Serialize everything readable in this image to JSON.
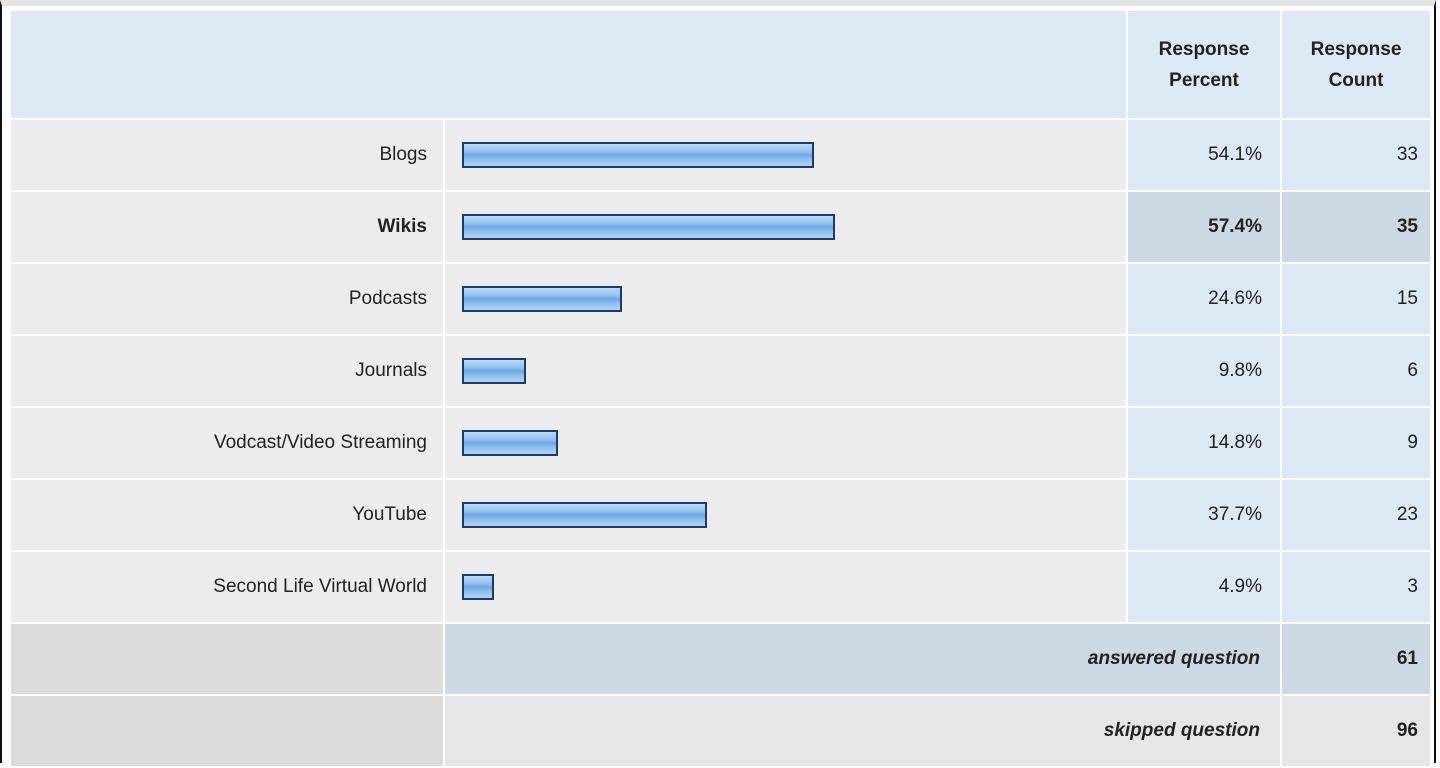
{
  "header": {
    "percent_label_1": "Response",
    "percent_label_2": "Percent",
    "count_label_1": "Response",
    "count_label_2": "Count"
  },
  "chart_data": {
    "type": "bar",
    "categories": [
      "Blogs",
      "Wikis",
      "Podcasts",
      "Journals",
      "Vodcast/Video Streaming",
      "YouTube",
      "Second Life Virtual World"
    ],
    "percent_labels": [
      "54.1%",
      "57.4%",
      "24.6%",
      "9.8%",
      "14.8%",
      "37.7%",
      "4.9%"
    ],
    "values": [
      54.1,
      57.4,
      24.6,
      9.8,
      14.8,
      37.7,
      4.9
    ],
    "counts": [
      "33",
      "35",
      "15",
      "6",
      "9",
      "23",
      "3"
    ],
    "highlighted": "Wikis",
    "bar_color": "#8fbdee",
    "bar_border": "#1c3c6c"
  },
  "summary": {
    "answered_label": "answered question",
    "answered_value": "61",
    "skipped_label": "skipped question",
    "skipped_value": "96"
  }
}
